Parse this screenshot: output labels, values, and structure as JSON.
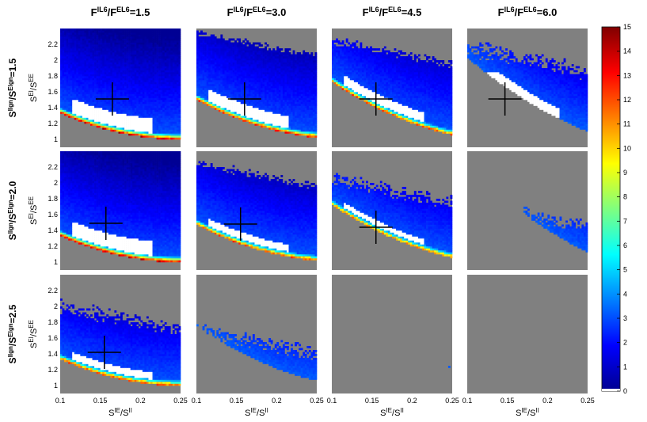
{
  "chart_data": {
    "type": "heatmap",
    "column_titles": [
      "F^{IL6}/F^{EL6}=1.5",
      "F^{IL6}/F^{EL6}=3.0",
      "F^{IL6}/F^{EL6}=4.5",
      "F^{IL6}/F^{EL6}=6.0"
    ],
    "row_titles": [
      "S^{Ilgn}/S^{Elgn}=1.5",
      "S^{Ilgn}/S^{Elgn}=2.0",
      "S^{Ilgn}/S^{Elgn}=2.5"
    ],
    "xlabel": "S^{IE}/S^{II}",
    "ylabel": "S^{EI}/S^{EE}",
    "xlim": [
      0.1,
      0.25
    ],
    "ylim": [
      0.9,
      2.4
    ],
    "xticks": [
      0.1,
      0.15,
      0.2,
      0.25
    ],
    "xtick_labels": [
      "0.1",
      "0.15",
      "0.2",
      "0.25"
    ],
    "yticks": [
      1.0,
      1.2,
      1.4,
      1.6,
      1.8,
      2.0,
      2.2
    ],
    "ytick_labels": [
      "1",
      "1.2",
      "1.4",
      "1.6",
      "1.8",
      "2",
      "2.2"
    ],
    "colorbar": {
      "min": 0,
      "max": 15,
      "ticks": [
        0,
        1,
        2,
        3,
        4,
        5,
        6,
        7,
        8,
        9,
        10,
        11,
        12,
        13,
        14,
        15
      ],
      "tick_labels": [
        "0",
        "1",
        "2",
        "3",
        "4",
        "5",
        "6",
        "7",
        "8",
        "9",
        "10",
        "11",
        "12",
        "13",
        "14",
        "15"
      ],
      "colormap": "jet"
    },
    "background_color": "#808080",
    "panels": [
      {
        "row": 0,
        "col": 0,
        "marker": [
          0.165,
          1.51
        ]
      },
      {
        "row": 0,
        "col": 1,
        "marker": [
          0.16,
          1.51
        ]
      },
      {
        "row": 0,
        "col": 2,
        "marker": [
          0.155,
          1.51
        ]
      },
      {
        "row": 0,
        "col": 3,
        "marker": [
          0.147,
          1.51
        ]
      },
      {
        "row": 1,
        "col": 0,
        "marker": [
          0.157,
          1.49
        ]
      },
      {
        "row": 1,
        "col": 1,
        "marker": [
          0.155,
          1.48
        ]
      },
      {
        "row": 1,
        "col": 2,
        "marker": [
          0.155,
          1.44
        ]
      },
      {
        "row": 1,
        "col": 3,
        "marker": null
      },
      {
        "row": 2,
        "col": 0,
        "marker": [
          0.155,
          1.42
        ]
      },
      {
        "row": 2,
        "col": 1,
        "marker": null
      },
      {
        "row": 2,
        "col": 2,
        "marker": null
      },
      {
        "row": 2,
        "col": 3,
        "marker": null
      }
    ]
  }
}
